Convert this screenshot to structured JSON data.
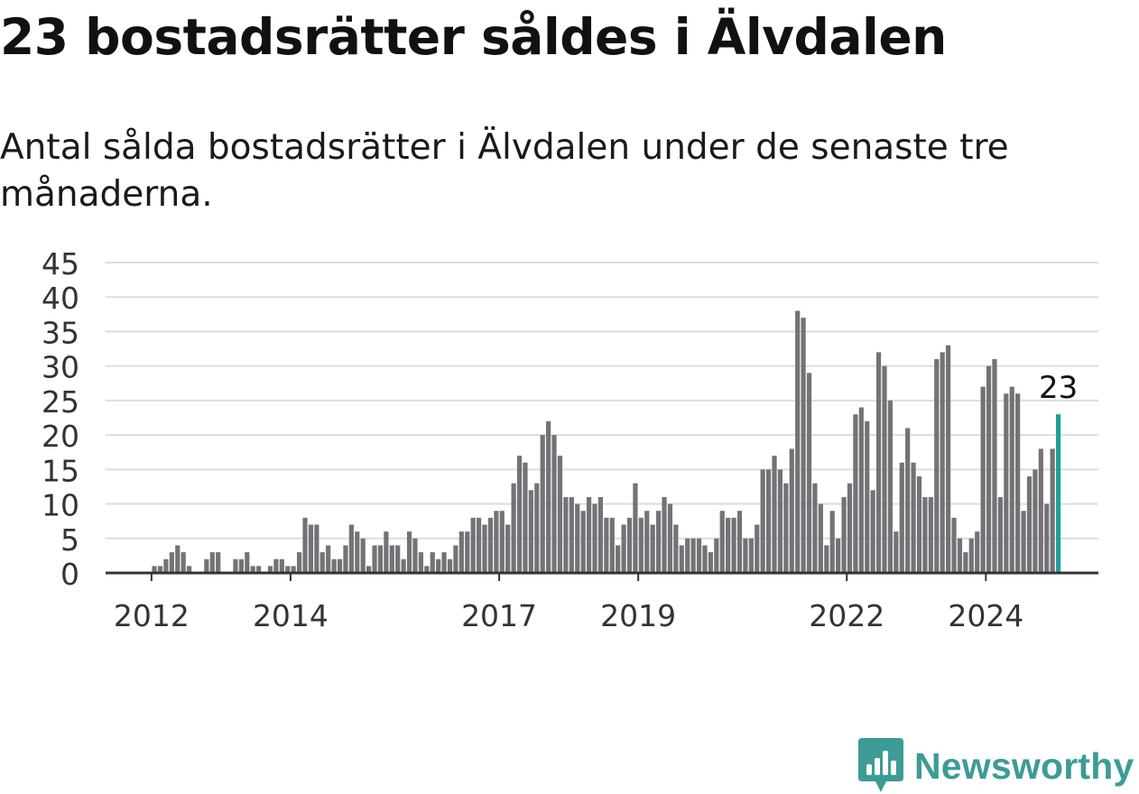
{
  "title": "23 bostadsrätter såldes i Älvdalen",
  "subtitle": "Antal sålda bostadsrätter i Älvdalen under de senaste tre månaderna.",
  "brand": {
    "name": "Newsworthy",
    "logo_icon": "bar-chart-speech-bubble-icon",
    "color": "#3d9b96"
  },
  "chart_data": {
    "type": "bar",
    "colors": {
      "bars": "#737277",
      "highlight": "#1f9f9b",
      "grid": "#dddddd",
      "axis": "#333333"
    },
    "ylim": [
      0,
      45
    ],
    "yticks": [
      "0",
      "5",
      "10",
      "15",
      "20",
      "25",
      "30",
      "35",
      "40",
      "45"
    ],
    "xtick_labels": [
      {
        "label": "2012",
        "index": 8
      },
      {
        "label": "2014",
        "index": 32
      },
      {
        "label": "2017",
        "index": 68
      },
      {
        "label": "2019",
        "index": 92
      },
      {
        "label": "2022",
        "index": 128
      },
      {
        "label": "2024",
        "index": 152
      }
    ],
    "values": [
      0,
      0,
      0,
      0,
      0,
      0,
      0,
      0,
      1,
      1,
      2,
      3,
      4,
      3,
      1,
      0,
      0,
      2,
      3,
      3,
      0,
      0,
      2,
      2,
      3,
      1,
      1,
      0,
      1,
      2,
      2,
      1,
      1,
      3,
      8,
      7,
      7,
      3,
      4,
      2,
      2,
      4,
      7,
      6,
      5,
      1,
      4,
      4,
      6,
      4,
      4,
      2,
      6,
      5,
      3,
      1,
      3,
      2,
      3,
      2,
      4,
      6,
      6,
      8,
      8,
      7,
      8,
      9,
      9,
      7,
      13,
      17,
      16,
      12,
      13,
      20,
      22,
      20,
      17,
      11,
      11,
      10,
      9,
      11,
      10,
      11,
      8,
      8,
      4,
      7,
      8,
      13,
      8,
      9,
      7,
      9,
      11,
      10,
      7,
      4,
      5,
      5,
      5,
      4,
      3,
      5,
      9,
      8,
      8,
      9,
      5,
      5,
      7,
      15,
      15,
      17,
      15,
      13,
      18,
      38,
      37,
      29,
      13,
      10,
      4,
      9,
      5,
      11,
      13,
      23,
      24,
      22,
      12,
      32,
      30,
      25,
      6,
      16,
      21,
      16,
      14,
      11,
      11,
      31,
      32,
      33,
      8,
      5,
      3,
      5,
      6,
      27,
      30,
      31,
      11,
      26,
      27,
      26,
      9,
      14,
      15,
      18,
      10,
      18,
      23
    ],
    "highlight_label": "23"
  }
}
